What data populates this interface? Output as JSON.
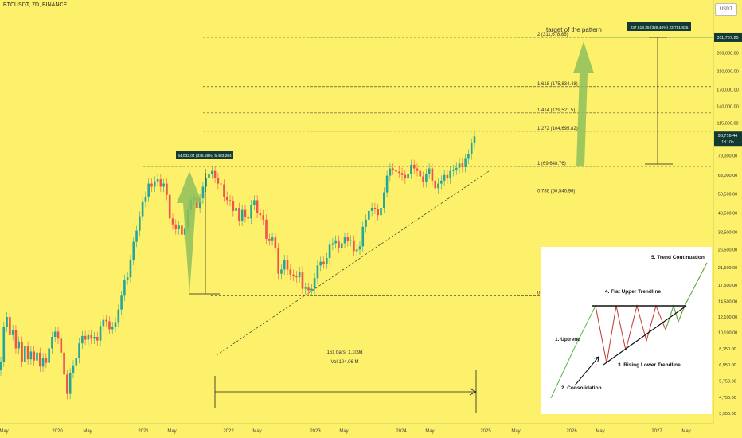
{
  "header": {
    "symbol": "BTCUSDT, 7D, BINANCE",
    "currency": "USDT"
  },
  "colors": {
    "bg": "#fdf06a",
    "up": "#26a69a",
    "down": "#ef5350",
    "arrow": "#8ec05a",
    "label_bg": "#123a33"
  },
  "chart_data": {
    "type": "candlestick",
    "title": "",
    "xlabel": "",
    "ylabel": "",
    "y_ticks": [
      "311,767.25",
      "260,000.00",
      "210,000.00",
      "170,000.00",
      "140,000.00",
      "115,000.00",
      "98,716.44",
      "79,000.00",
      "63,000.00",
      "50,500.00",
      "40,500.00",
      "32,500.00",
      "26,500.00",
      "21,500.00",
      "17,500.00",
      "14,500.00",
      "12,100.00",
      "10,100.00",
      "8,350.00",
      "6,950.00",
      "5,750.00",
      "4,750.00",
      "3,950.00"
    ],
    "y_ticks_values": [
      311767.25,
      260000,
      210000,
      170000,
      140000,
      115000,
      98716.44,
      79000,
      63000,
      50500,
      40500,
      32500,
      26500,
      21500,
      17500,
      14500,
      12100,
      10100,
      8350,
      6950,
      5750,
      4750,
      3950
    ],
    "x_ticks": [
      "May",
      "2020",
      "May",
      "2021",
      "May",
      "2022",
      "May",
      "2023",
      "May",
      "2024",
      "May",
      "2025",
      "May",
      "2026",
      "May",
      "2027",
      "May"
    ],
    "price_label": {
      "value": "98,716.44",
      "sub": "1d 10h"
    },
    "fib_levels": [
      {
        "label": "2 (311,678.85)",
        "value": 311678.85
      },
      {
        "label": "1.618 (175,834.48)",
        "value": 175834.48
      },
      {
        "label": "1.414 (129,521.5)",
        "value": 129521.5
      },
      {
        "label": "1.272 (104,695.82)",
        "value": 104695.82
      },
      {
        "label": "1 (69,648.76)",
        "value": 69648.76
      },
      {
        "label": "0.786 (50,540.96)",
        "value": 50540.96
      },
      {
        "label": "0",
        "value": 15500
      }
    ],
    "annotations": {
      "target_text": "target of the pattern",
      "left_measure": "54,032.04 (336.58%) 5,403,204",
      "right_measure": "237,518.35 (328.46%) 23,751,835",
      "range_bars": "161 bars, 1,109d",
      "range_vol": "Vol 104.06 M",
      "right_value_tag": "311,767.25"
    },
    "inset": {
      "labels": [
        "1. Uptrend",
        "2. Consolidation",
        "3. Rising Lower Trendline",
        "4. Flat Upper Trendline",
        "5. Trend Continuation"
      ]
    },
    "candles": [
      [
        6500,
        7200
      ],
      [
        7200,
        10800
      ],
      [
        10800,
        12100
      ],
      [
        12100,
        9800
      ],
      [
        9800,
        10400
      ],
      [
        10400,
        8400
      ],
      [
        8400,
        9100
      ],
      [
        9100,
        7200
      ],
      [
        7200,
        8600
      ],
      [
        8600,
        7400
      ],
      [
        7400,
        8100
      ],
      [
        8100,
        7300
      ],
      [
        7300,
        8000
      ],
      [
        8000,
        6800
      ],
      [
        6800,
        7500
      ],
      [
        7500,
        7100
      ],
      [
        7100,
        8400
      ],
      [
        8400,
        9600
      ],
      [
        9600,
        10200
      ],
      [
        10200,
        9400
      ],
      [
        9400,
        8000
      ],
      [
        8000,
        6200
      ],
      [
        6200,
        4950
      ],
      [
        4950,
        6300
      ],
      [
        6300,
        6900
      ],
      [
        6900,
        7500
      ],
      [
        7500,
        8900
      ],
      [
        8900,
        9700
      ],
      [
        9700,
        9300
      ],
      [
        9300,
        9800
      ],
      [
        9800,
        9400
      ],
      [
        9400,
        9600
      ],
      [
        9600,
        9200
      ],
      [
        9200,
        10900
      ],
      [
        10900,
        11700
      ],
      [
        11700,
        11500
      ],
      [
        11500,
        10500
      ],
      [
        10500,
        10800
      ],
      [
        10800,
        11400
      ],
      [
        11400,
        13200
      ],
      [
        13200,
        15500
      ],
      [
        15500,
        18700
      ],
      [
        18700,
        19200
      ],
      [
        19200,
        23500
      ],
      [
        23500,
        29000
      ],
      [
        29000,
        33000
      ],
      [
        33000,
        39000
      ],
      [
        39000,
        46000
      ],
      [
        46000,
        49000
      ],
      [
        49000,
        57000
      ],
      [
        57000,
        55000
      ],
      [
        55000,
        58500
      ],
      [
        58500,
        60000
      ],
      [
        60000,
        55000
      ],
      [
        55000,
        57000
      ],
      [
        57000,
        50000
      ],
      [
        50000,
        38000
      ],
      [
        38000,
        35500
      ],
      [
        35500,
        33500
      ],
      [
        33500,
        35000
      ],
      [
        35000,
        31500
      ],
      [
        31500,
        34000
      ],
      [
        34000,
        42000
      ],
      [
        42000,
        47000
      ],
      [
        47000,
        48500
      ],
      [
        48500,
        43000
      ],
      [
        43000,
        48000
      ],
      [
        48000,
        55000
      ],
      [
        55000,
        61000
      ],
      [
        61000,
        64000
      ],
      [
        64000,
        66000
      ],
      [
        66000,
        61000
      ],
      [
        61000,
        57000
      ],
      [
        57000,
        56500
      ],
      [
        56500,
        49000
      ],
      [
        49000,
        47000
      ],
      [
        47000,
        46500
      ],
      [
        46500,
        41500
      ],
      [
        41500,
        43000
      ],
      [
        43000,
        37000
      ],
      [
        37000,
        42000
      ],
      [
        42000,
        38500
      ],
      [
        38500,
        38000
      ],
      [
        38000,
        44500
      ],
      [
        44500,
        47000
      ],
      [
        47000,
        40500
      ],
      [
        40500,
        39500
      ],
      [
        39500,
        37500
      ],
      [
        37500,
        30000
      ],
      [
        30000,
        29500
      ],
      [
        29500,
        30500
      ],
      [
        30500,
        27000
      ],
      [
        27000,
        20000
      ],
      [
        20000,
        21000
      ],
      [
        21000,
        23500
      ],
      [
        23500,
        21000
      ],
      [
        21000,
        19800
      ],
      [
        19800,
        19500
      ],
      [
        19500,
        19200
      ],
      [
        19200,
        20500
      ],
      [
        20500,
        16800
      ],
      [
        16800,
        17000
      ],
      [
        17000,
        16500
      ],
      [
        16500,
        16800
      ],
      [
        16800,
        19000
      ],
      [
        19000,
        22000
      ],
      [
        22000,
        23000
      ],
      [
        23000,
        22500
      ],
      [
        22500,
        24000
      ],
      [
        24000,
        28000
      ],
      [
        28000,
        28500
      ],
      [
        28500,
        29500
      ],
      [
        29500,
        27000
      ],
      [
        27000,
        28500
      ],
      [
        28500,
        30500
      ],
      [
        30500,
        29200
      ],
      [
        29200,
        29500
      ],
      [
        29500,
        26000
      ],
      [
        26000,
        26500
      ],
      [
        26500,
        27500
      ],
      [
        27500,
        34500
      ],
      [
        34500,
        37500
      ],
      [
        37500,
        41500
      ],
      [
        41500,
        43000
      ],
      [
        43000,
        42500
      ],
      [
        42500,
        39500
      ],
      [
        39500,
        43000
      ],
      [
        43000,
        51500
      ],
      [
        51500,
        62500
      ],
      [
        62500,
        68000
      ],
      [
        68000,
        67000
      ],
      [
        67000,
        65500
      ],
      [
        65500,
        64500
      ],
      [
        64500,
        63000
      ],
      [
        63000,
        60500
      ],
      [
        60500,
        64000
      ],
      [
        64000,
        71000
      ],
      [
        71000,
        68000
      ],
      [
        68000,
        66000
      ],
      [
        66000,
        62000
      ],
      [
        62000,
        58000
      ],
      [
        58000,
        64000
      ],
      [
        64000,
        68000
      ],
      [
        68000,
        59000
      ],
      [
        59000,
        54000
      ],
      [
        54000,
        57000
      ],
      [
        57000,
        59000
      ],
      [
        59000,
        63000
      ],
      [
        63000,
        60500
      ],
      [
        60500,
        66000
      ],
      [
        66000,
        67000
      ],
      [
        67000,
        68500
      ],
      [
        68500,
        72000
      ],
      [
        72000,
        69000
      ],
      [
        69000,
        76000
      ],
      [
        76000,
        80000
      ],
      [
        80000,
        91000
      ],
      [
        91000,
        98716
      ]
    ]
  }
}
